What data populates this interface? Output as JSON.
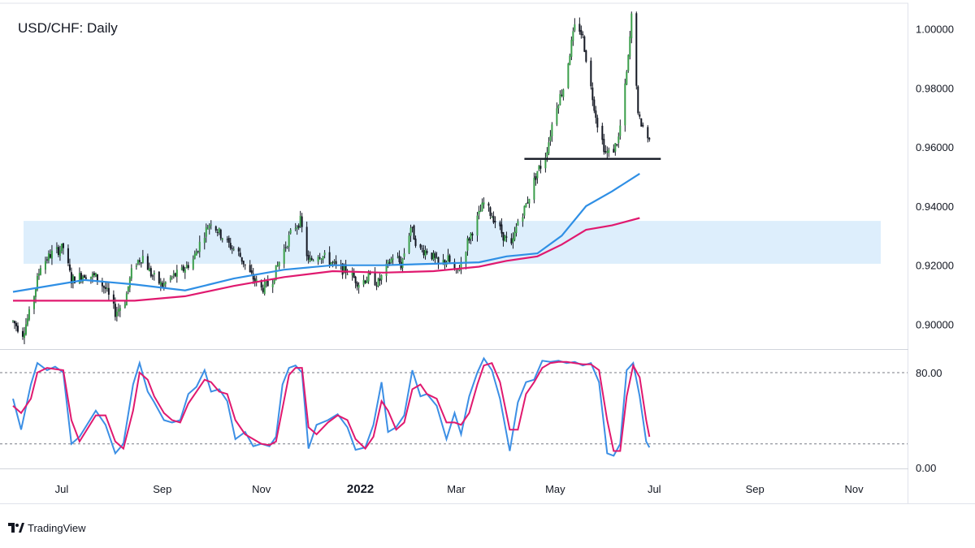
{
  "chart_data": {
    "type": "candlestick",
    "title": "USD/CHF: Daily",
    "price_axis": {
      "ylim": [
        0.893,
        1.007
      ],
      "ticks": [
        "0.90000",
        "0.92000",
        "0.94000",
        "0.96000",
        "0.98000",
        "1.00000"
      ]
    },
    "time_axis": {
      "tick_labels": [
        "Jul",
        "Sep",
        "Nov",
        "2022",
        "Mar",
        "May",
        "Jul",
        "Sep",
        "Nov"
      ]
    },
    "support_line": {
      "level": 0.956,
      "from": "2022-04-12",
      "to": "2022-07-05"
    },
    "demand_zone": {
      "low": 0.9205,
      "high": 0.935
    },
    "moving_averages": [
      {
        "color": "#2f8fe5",
        "points": [
          [
            "2021-06-01",
            0.911
          ],
          [
            "2021-07-15",
            0.915
          ],
          [
            "2021-08-15",
            0.9135
          ],
          [
            "2021-09-15",
            0.9115
          ],
          [
            "2021-10-15",
            0.9155
          ],
          [
            "2021-11-15",
            0.9185
          ],
          [
            "2021-12-15",
            0.92
          ],
          [
            "2022-01-15",
            0.92
          ],
          [
            "2022-02-15",
            0.9205
          ],
          [
            "2022-03-15",
            0.921
          ],
          [
            "2022-04-01",
            0.923
          ],
          [
            "2022-04-20",
            0.924
          ],
          [
            "2022-05-05",
            0.93
          ],
          [
            "2022-05-20",
            0.94
          ],
          [
            "2022-06-05",
            0.945
          ],
          [
            "2022-06-22",
            0.951
          ]
        ]
      },
      {
        "color": "#e0196f",
        "points": [
          [
            "2021-06-01",
            0.908
          ],
          [
            "2021-07-15",
            0.908
          ],
          [
            "2021-08-15",
            0.908
          ],
          [
            "2021-09-15",
            0.9095
          ],
          [
            "2021-10-15",
            0.913
          ],
          [
            "2021-11-15",
            0.916
          ],
          [
            "2021-12-15",
            0.918
          ],
          [
            "2022-01-15",
            0.9175
          ],
          [
            "2022-02-15",
            0.918
          ],
          [
            "2022-03-15",
            0.9195
          ],
          [
            "2022-04-01",
            0.9215
          ],
          [
            "2022-04-20",
            0.923
          ],
          [
            "2022-05-05",
            0.927
          ],
          [
            "2022-05-20",
            0.932
          ],
          [
            "2022-06-05",
            0.9335
          ],
          [
            "2022-06-22",
            0.936
          ]
        ]
      }
    ],
    "price_path": [
      [
        "2021-06-01",
        0.901
      ],
      [
        "2021-06-07",
        0.897
      ],
      [
        "2021-06-12",
        0.905
      ],
      [
        "2021-06-18",
        0.92
      ],
      [
        "2021-06-25",
        0.924
      ],
      [
        "2021-07-02",
        0.926
      ],
      [
        "2021-07-07",
        0.915
      ],
      [
        "2021-07-15",
        0.917
      ],
      [
        "2021-07-22",
        0.916
      ],
      [
        "2021-07-28",
        0.912
      ],
      [
        "2021-08-03",
        0.904
      ],
      [
        "2021-08-09",
        0.908
      ],
      [
        "2021-08-14",
        0.92
      ],
      [
        "2021-08-20",
        0.923
      ],
      [
        "2021-08-25",
        0.917
      ],
      [
        "2021-09-01",
        0.913
      ],
      [
        "2021-09-07",
        0.916
      ],
      [
        "2021-09-13",
        0.918
      ],
      [
        "2021-09-20",
        0.922
      ],
      [
        "2021-09-26",
        0.93
      ],
      [
        "2021-10-01",
        0.935
      ],
      [
        "2021-10-06",
        0.931
      ],
      [
        "2021-10-12",
        0.927
      ],
      [
        "2021-10-18",
        0.924
      ],
      [
        "2021-10-25",
        0.917
      ],
      [
        "2021-11-01",
        0.912
      ],
      [
        "2021-11-07",
        0.914
      ],
      [
        "2021-11-14",
        0.924
      ],
      [
        "2021-11-20",
        0.932
      ],
      [
        "2021-11-25",
        0.935
      ],
      [
        "2021-11-30",
        0.921
      ],
      [
        "2021-12-06",
        0.924
      ],
      [
        "2021-12-12",
        0.922
      ],
      [
        "2021-12-18",
        0.919
      ],
      [
        "2021-12-24",
        0.918
      ],
      [
        "2021-12-31",
        0.914
      ],
      [
        "2022-01-06",
        0.916
      ],
      [
        "2022-01-12",
        0.914
      ],
      [
        "2022-01-18",
        0.92
      ],
      [
        "2022-01-22",
        0.924
      ],
      [
        "2022-01-26",
        0.92
      ],
      [
        "2022-02-01",
        0.933
      ],
      [
        "2022-02-06",
        0.925
      ],
      [
        "2022-02-12",
        0.925
      ],
      [
        "2022-02-18",
        0.92
      ],
      [
        "2022-02-24",
        0.922
      ],
      [
        "2022-03-01",
        0.917
      ],
      [
        "2022-03-05",
        0.922
      ],
      [
        "2022-03-08",
        0.928
      ],
      [
        "2022-03-12",
        0.933
      ],
      [
        "2022-03-18",
        0.941
      ],
      [
        "2022-03-24",
        0.936
      ],
      [
        "2022-03-30",
        0.93
      ],
      [
        "2022-04-04",
        0.926
      ],
      [
        "2022-04-08",
        0.935
      ],
      [
        "2022-04-12",
        0.939
      ],
      [
        "2022-04-16",
        0.945
      ],
      [
        "2022-04-20",
        0.952
      ],
      [
        "2022-04-24",
        0.955
      ],
      [
        "2022-04-27",
        0.962
      ],
      [
        "2022-05-01",
        0.973
      ],
      [
        "2022-05-06",
        0.98
      ],
      [
        "2022-05-11",
        0.995
      ],
      [
        "2022-05-14",
        1.003
      ],
      [
        "2022-05-18",
        0.997
      ],
      [
        "2022-05-23",
        0.98
      ],
      [
        "2022-05-27",
        0.968
      ],
      [
        "2022-06-01",
        0.958
      ],
      [
        "2022-06-05",
        0.958
      ],
      [
        "2022-06-09",
        0.963
      ],
      [
        "2022-06-12",
        0.975
      ],
      [
        "2022-06-15",
        0.99
      ],
      [
        "2022-06-17",
        1.004
      ],
      [
        "2022-06-19",
        0.994
      ],
      [
        "2022-06-21",
        0.97
      ],
      [
        "2022-06-24",
        0.967
      ],
      [
        "2022-06-28",
        0.962
      ]
    ],
    "stochastic": {
      "levels": [
        20,
        80
      ],
      "tick_labels": [
        "0.00",
        "80.00"
      ],
      "ylim": [
        0,
        95
      ],
      "k_color": "#3c8fe5",
      "d_color": "#e0196f",
      "k": [
        [
          "2021-06-01",
          58
        ],
        [
          "2021-06-06",
          32
        ],
        [
          "2021-06-12",
          70
        ],
        [
          "2021-06-16",
          88
        ],
        [
          "2021-06-22",
          82
        ],
        [
          "2021-06-27",
          85
        ],
        [
          "2021-07-02",
          80
        ],
        [
          "2021-07-07",
          20
        ],
        [
          "2021-07-12",
          26
        ],
        [
          "2021-07-22",
          48
        ],
        [
          "2021-07-28",
          36
        ],
        [
          "2021-08-03",
          12
        ],
        [
          "2021-08-08",
          20
        ],
        [
          "2021-08-14",
          70
        ],
        [
          "2021-08-18",
          88
        ],
        [
          "2021-08-23",
          64
        ],
        [
          "2021-08-27",
          55
        ],
        [
          "2021-09-02",
          40
        ],
        [
          "2021-09-07",
          38
        ],
        [
          "2021-09-12",
          40
        ],
        [
          "2021-09-17",
          62
        ],
        [
          "2021-09-22",
          68
        ],
        [
          "2021-09-27",
          82
        ],
        [
          "2021-10-01",
          64
        ],
        [
          "2021-10-06",
          66
        ],
        [
          "2021-10-11",
          56
        ],
        [
          "2021-10-16",
          24
        ],
        [
          "2021-10-22",
          30
        ],
        [
          "2021-10-27",
          18
        ],
        [
          "2021-11-01",
          20
        ],
        [
          "2021-11-06",
          18
        ],
        [
          "2021-11-10",
          26
        ],
        [
          "2021-11-14",
          70
        ],
        [
          "2021-11-18",
          84
        ],
        [
          "2021-11-22",
          86
        ],
        [
          "2021-11-26",
          80
        ],
        [
          "2021-11-30",
          16
        ],
        [
          "2021-12-05",
          36
        ],
        [
          "2021-12-12",
          40
        ],
        [
          "2021-12-18",
          45
        ],
        [
          "2021-12-24",
          34
        ],
        [
          "2021-12-29",
          15
        ],
        [
          "2022-01-04",
          17
        ],
        [
          "2022-01-09",
          36
        ],
        [
          "2022-01-14",
          72
        ],
        [
          "2022-01-18",
          30
        ],
        [
          "2022-01-23",
          34
        ],
        [
          "2022-01-28",
          44
        ],
        [
          "2022-02-02",
          82
        ],
        [
          "2022-02-07",
          60
        ],
        [
          "2022-02-11",
          62
        ],
        [
          "2022-02-17",
          52
        ],
        [
          "2022-02-23",
          24
        ],
        [
          "2022-02-28",
          46
        ],
        [
          "2022-03-04",
          28
        ],
        [
          "2022-03-09",
          60
        ],
        [
          "2022-03-14",
          80
        ],
        [
          "2022-03-18",
          92
        ],
        [
          "2022-03-23",
          82
        ],
        [
          "2022-03-28",
          58
        ],
        [
          "2022-04-03",
          14
        ],
        [
          "2022-04-08",
          55
        ],
        [
          "2022-04-13",
          72
        ],
        [
          "2022-04-18",
          74
        ],
        [
          "2022-04-23",
          90
        ],
        [
          "2022-04-28",
          89
        ],
        [
          "2022-05-03",
          90
        ],
        [
          "2022-05-08",
          88
        ],
        [
          "2022-05-13",
          89
        ],
        [
          "2022-05-18",
          86
        ],
        [
          "2022-05-23",
          88
        ],
        [
          "2022-05-28",
          72
        ],
        [
          "2022-06-02",
          12
        ],
        [
          "2022-06-06",
          10
        ],
        [
          "2022-06-10",
          20
        ],
        [
          "2022-06-14",
          82
        ],
        [
          "2022-06-18",
          88
        ],
        [
          "2022-06-22",
          60
        ],
        [
          "2022-06-26",
          22
        ],
        [
          "2022-06-28",
          17
        ]
      ],
      "d": [
        [
          "2021-06-01",
          52
        ],
        [
          "2021-06-06",
          46
        ],
        [
          "2021-06-12",
          58
        ],
        [
          "2021-06-16",
          80
        ],
        [
          "2021-06-22",
          84
        ],
        [
          "2021-06-27",
          83
        ],
        [
          "2021-07-02",
          82
        ],
        [
          "2021-07-07",
          40
        ],
        [
          "2021-07-12",
          22
        ],
        [
          "2021-07-22",
          44
        ],
        [
          "2021-07-28",
          44
        ],
        [
          "2021-08-03",
          22
        ],
        [
          "2021-08-08",
          16
        ],
        [
          "2021-08-14",
          48
        ],
        [
          "2021-08-18",
          80
        ],
        [
          "2021-08-23",
          74
        ],
        [
          "2021-08-27",
          60
        ],
        [
          "2021-09-02",
          46
        ],
        [
          "2021-09-07",
          40
        ],
        [
          "2021-09-12",
          38
        ],
        [
          "2021-09-17",
          54
        ],
        [
          "2021-09-22",
          64
        ],
        [
          "2021-09-27",
          74
        ],
        [
          "2021-10-01",
          72
        ],
        [
          "2021-10-06",
          64
        ],
        [
          "2021-10-11",
          62
        ],
        [
          "2021-10-16",
          40
        ],
        [
          "2021-10-22",
          28
        ],
        [
          "2021-10-27",
          24
        ],
        [
          "2021-11-01",
          20
        ],
        [
          "2021-11-06",
          19
        ],
        [
          "2021-11-10",
          22
        ],
        [
          "2021-11-14",
          50
        ],
        [
          "2021-11-18",
          78
        ],
        [
          "2021-11-22",
          84
        ],
        [
          "2021-11-26",
          84
        ],
        [
          "2021-11-30",
          34
        ],
        [
          "2021-12-05",
          28
        ],
        [
          "2021-12-12",
          38
        ],
        [
          "2021-12-18",
          44
        ],
        [
          "2021-12-24",
          40
        ],
        [
          "2021-12-29",
          24
        ],
        [
          "2022-01-04",
          16
        ],
        [
          "2022-01-09",
          26
        ],
        [
          "2022-01-14",
          56
        ],
        [
          "2022-01-18",
          48
        ],
        [
          "2022-01-23",
          32
        ],
        [
          "2022-01-28",
          38
        ],
        [
          "2022-02-02",
          66
        ],
        [
          "2022-02-07",
          70
        ],
        [
          "2022-02-11",
          62
        ],
        [
          "2022-02-17",
          58
        ],
        [
          "2022-02-23",
          38
        ],
        [
          "2022-02-28",
          38
        ],
        [
          "2022-03-04",
          36
        ],
        [
          "2022-03-09",
          46
        ],
        [
          "2022-03-14",
          70
        ],
        [
          "2022-03-18",
          86
        ],
        [
          "2022-03-23",
          88
        ],
        [
          "2022-03-28",
          72
        ],
        [
          "2022-04-03",
          32
        ],
        [
          "2022-04-08",
          32
        ],
        [
          "2022-04-13",
          62
        ],
        [
          "2022-04-18",
          72
        ],
        [
          "2022-04-23",
          84
        ],
        [
          "2022-04-28",
          88
        ],
        [
          "2022-05-03",
          89
        ],
        [
          "2022-05-08",
          89
        ],
        [
          "2022-05-13",
          88
        ],
        [
          "2022-05-18",
          87
        ],
        [
          "2022-05-23",
          87
        ],
        [
          "2022-05-28",
          82
        ],
        [
          "2022-06-02",
          40
        ],
        [
          "2022-06-06",
          14
        ],
        [
          "2022-06-10",
          14
        ],
        [
          "2022-06-14",
          60
        ],
        [
          "2022-06-18",
          86
        ],
        [
          "2022-06-22",
          76
        ],
        [
          "2022-06-26",
          40
        ],
        [
          "2022-06-28",
          26
        ]
      ]
    }
  },
  "branding": {
    "logo_text": "TradingView"
  }
}
